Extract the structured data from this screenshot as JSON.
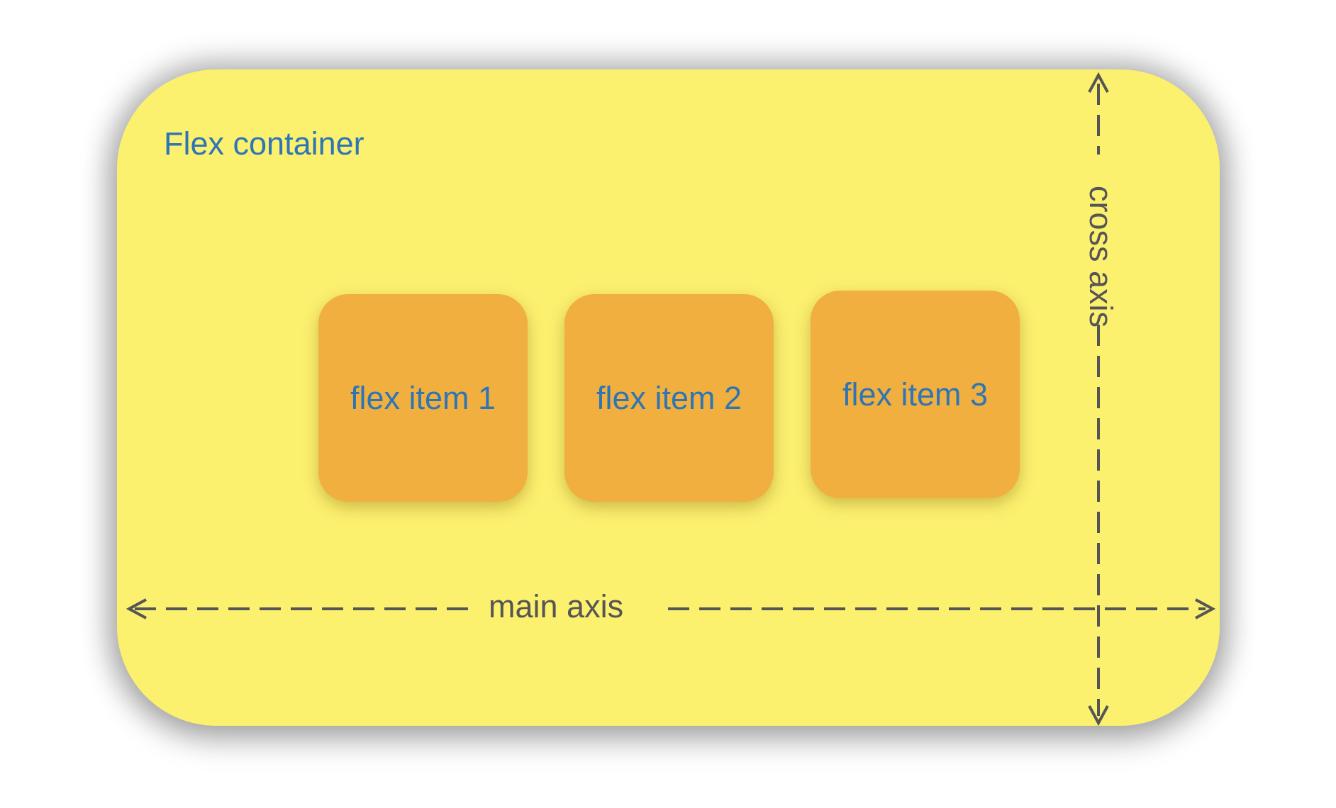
{
  "diagram": {
    "container_label": "Flex container",
    "items": [
      {
        "label": "flex item 1"
      },
      {
        "label": "flex item 2"
      },
      {
        "label": "flex item 3"
      }
    ],
    "main_axis_label": "main axis",
    "cross_axis_label": "cross axis"
  },
  "colors": {
    "container_fill": "#fcf06f",
    "item_fill": "#f0af3e",
    "label_text": "#2e75b6",
    "axis_line": "#555555",
    "axis_text": "#555555"
  }
}
